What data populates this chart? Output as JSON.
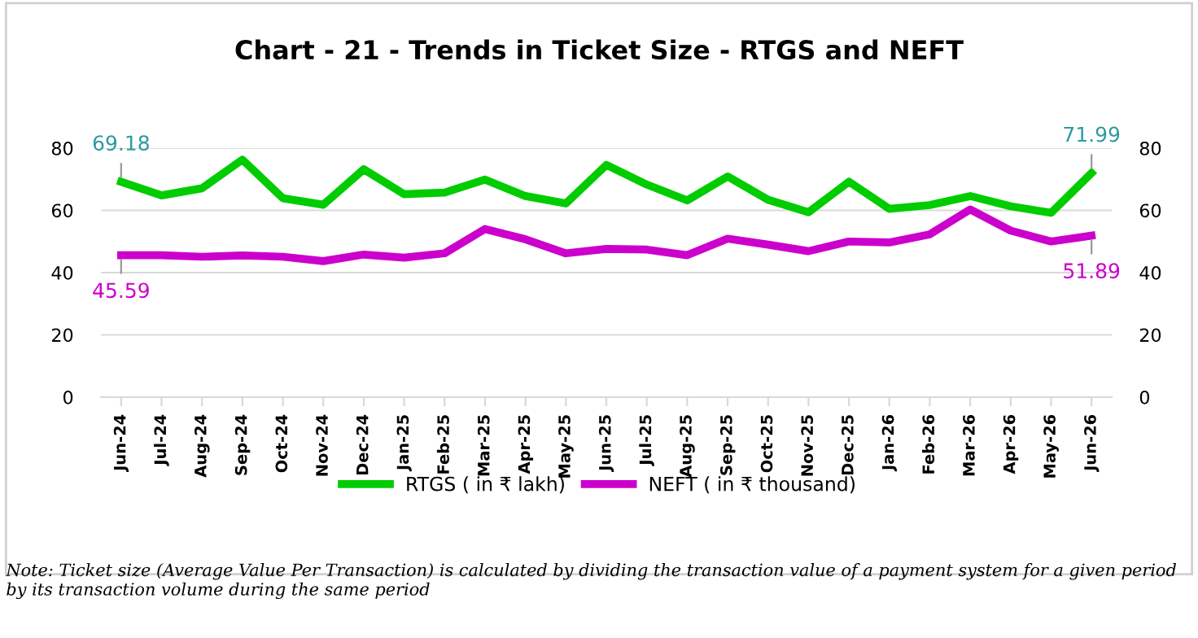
{
  "chart_data": {
    "type": "line",
    "title": "Chart - 21 - Trends in Ticket Size - RTGS and NEFT",
    "categories": [
      "Jun-24",
      "Jul-24",
      "Aug-24",
      "Sep-24",
      "Oct-24",
      "Nov-24",
      "Dec-24",
      "Jan-25",
      "Feb-25",
      "Mar-25",
      "Apr-25",
      "May-25",
      "Jun-25",
      "Jul-25",
      "Aug-25",
      "Sep-25",
      "Oct-25",
      "Nov-25",
      "Dec-25",
      "Jan-26",
      "Feb-26",
      "Mar-26",
      "Apr-26",
      "May-26",
      "Jun-26"
    ],
    "series": [
      {
        "name": "RTGS ( in ₹ lakh)",
        "color": "#00cc00",
        "values": [
          69.18,
          64.8,
          67.1,
          76.3,
          63.9,
          61.8,
          73.2,
          65.2,
          65.7,
          69.9,
          64.6,
          62.2,
          74.6,
          68.3,
          63.2,
          70.9,
          63.4,
          59.4,
          69.2,
          60.5,
          61.7,
          64.6,
          61.3,
          59.2,
          71.99
        ],
        "value_labels": [
          "69.18",
          null,
          null,
          null,
          null,
          null,
          null,
          null,
          null,
          null,
          null,
          null,
          null,
          null,
          null,
          null,
          null,
          null,
          null,
          null,
          null,
          null,
          null,
          null,
          "71.99"
        ]
      },
      {
        "name": "NEFT ( in ₹ thousand)",
        "color": "#cc00cc",
        "values": [
          45.59,
          45.6,
          45.1,
          45.5,
          45.1,
          43.7,
          45.8,
          44.8,
          46.2,
          54.0,
          50.7,
          46.2,
          47.6,
          47.4,
          45.6,
          50.9,
          49.0,
          46.9,
          50.0,
          49.7,
          52.3,
          60.3,
          53.5,
          50.0,
          51.89
        ],
        "value_labels": [
          "45.59",
          null,
          null,
          null,
          null,
          null,
          null,
          null,
          null,
          null,
          null,
          null,
          null,
          null,
          null,
          null,
          null,
          null,
          null,
          null,
          null,
          null,
          null,
          null,
          "51.89"
        ]
      }
    ],
    "ylim": [
      0,
      80
    ],
    "yticks": [
      0,
      20,
      40,
      60,
      80
    ],
    "y2lim": [
      0,
      80
    ],
    "y2ticks": [
      0,
      20,
      40,
      60,
      80
    ],
    "grid": "y",
    "legend": "bottom",
    "marker": "none",
    "line_style": "solid",
    "annotations": [
      "Note: Ticket size (Average Value Per Transaction) is calculated by dividing the transaction value of a payment system for a given period by its transaction volume during the same period"
    ]
  }
}
